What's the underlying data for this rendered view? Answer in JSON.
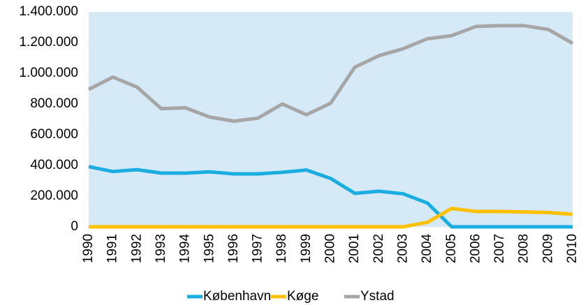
{
  "chart_data": {
    "type": "line",
    "categories": [
      "1990",
      "1991",
      "1992",
      "1993",
      "1994",
      "1995",
      "1996",
      "1997",
      "1998",
      "1999",
      "2000",
      "2001",
      "2002",
      "2003",
      "2004",
      "2005",
      "2006",
      "2007",
      "2008",
      "2009",
      "2010"
    ],
    "series": [
      {
        "name": "København",
        "color": "#1aaee0",
        "values": [
          392000,
          360000,
          372000,
          350000,
          350000,
          358000,
          345000,
          345000,
          355000,
          370000,
          315000,
          218000,
          232000,
          215000,
          155000,
          0,
          0,
          0,
          0,
          0,
          0
        ]
      },
      {
        "name": "Køge",
        "color": "#ffc000",
        "values": [
          0,
          0,
          0,
          0,
          0,
          0,
          0,
          0,
          0,
          0,
          0,
          0,
          0,
          0,
          30000,
          120000,
          100000,
          100000,
          97000,
          93000,
          82000
        ]
      },
      {
        "name": "Ystad",
        "color": "#a6a6a6",
        "values": [
          895000,
          975000,
          910000,
          770000,
          775000,
          715000,
          688000,
          708000,
          800000,
          730000,
          805000,
          1040000,
          1115000,
          1160000,
          1225000,
          1245000,
          1305000,
          1310000,
          1310000,
          1285000,
          1195000
        ]
      }
    ],
    "ylim": [
      0,
      1400000
    ],
    "yticks": [
      0,
      {
        "value": 200000,
        "label": "200.000"
      },
      {
        "value": 400000,
        "label": "400.000"
      },
      {
        "value": 600000,
        "label": "600.000"
      },
      {
        "value": 800000,
        "label": "800.000"
      },
      {
        "value": 1000000,
        "label": "1.000.000"
      },
      {
        "value": 1200000,
        "label": "1.200.000"
      },
      {
        "value": 1400000,
        "label": "1.400.000"
      }
    ],
    "legend": "bottom"
  }
}
